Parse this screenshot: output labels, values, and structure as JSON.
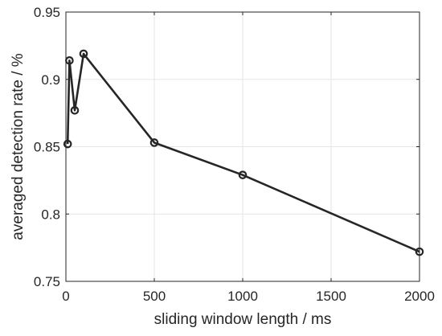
{
  "chart_data": {
    "type": "line",
    "title": "",
    "xlabel": "sliding window length / ms",
    "ylabel": "averaged detection rate / %",
    "xlim": [
      0,
      2000
    ],
    "ylim": [
      0.75,
      0.95
    ],
    "xticks": [
      0,
      500,
      1000,
      1500,
      2000
    ],
    "xtick_labels": [
      "0",
      "500",
      "1000",
      "1500",
      "2000"
    ],
    "yticks": [
      0.75,
      0.8,
      0.85,
      0.9,
      0.95
    ],
    "ytick_labels": [
      "0.75",
      "0.8",
      "0.85",
      "0.9",
      "0.95"
    ],
    "grid": true,
    "legend": "none",
    "series": [
      {
        "x": [
          10,
          20,
          50,
          100,
          500,
          1000,
          2000
        ],
        "y": [
          0.852,
          0.914,
          0.877,
          0.919,
          0.853,
          0.829,
          0.772
        ],
        "color": "#262626",
        "marker": "circle"
      }
    ]
  }
}
